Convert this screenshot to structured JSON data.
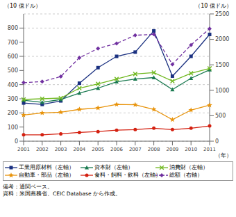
{
  "chart_data": {
    "type": "line",
    "categories": [
      "2001",
      "2002",
      "2003",
      "2004",
      "2005",
      "2006",
      "2007",
      "2008",
      "2009",
      "2010",
      "2011"
    ],
    "series": [
      {
        "name": "工業用原材料（左軸）",
        "color": "#1a3080",
        "marker": "square",
        "line_style": "solid",
        "axis": "y",
        "values": [
          270,
          260,
          285,
          410,
          520,
          600,
          630,
          780,
          460,
          600,
          755
        ]
      },
      {
        "name": "資本財（左軸）",
        "color": "#1a7a50",
        "marker": "triangle",
        "line_style": "solid",
        "axis": "y",
        "values": [
          290,
          275,
          295,
          340,
          375,
          420,
          440,
          450,
          365,
          445,
          505
        ]
      },
      {
        "name": "消費財（左軸）",
        "color": "#70b820",
        "marker": "x",
        "line_style": "solid",
        "axis": "y",
        "values": [
          295,
          300,
          305,
          375,
          405,
          440,
          475,
          485,
          425,
          480,
          515
        ]
      },
      {
        "name": "自動車・部品（左軸）",
        "color": "#e8930a",
        "marker": "star",
        "line_style": "solid",
        "axis": "y",
        "values": [
          185,
          200,
          205,
          225,
          235,
          260,
          258,
          225,
          152,
          220,
          255
        ]
      },
      {
        "name": "食料・飼料・飲料（左軸）",
        "color": "#d42010",
        "marker": "circle",
        "line_style": "solid",
        "axis": "y",
        "values": [
          45,
          45,
          52,
          62,
          68,
          78,
          82,
          92,
          82,
          92,
          108
        ]
      },
      {
        "name": "総額（右軸）",
        "color": "#7030a0",
        "marker": "diamond",
        "line_style": "dashed",
        "axis": "y2",
        "values": [
          1150,
          1170,
          1270,
          1640,
          1820,
          1920,
          2080,
          2100,
          1510,
          1890,
          2210
        ]
      }
    ],
    "ylim": [
      0,
      900
    ],
    "yticks": [
      0,
      100,
      200,
      300,
      400,
      500,
      600,
      700,
      800
    ],
    "y2lim": [
      0,
      2500
    ],
    "y2ticks": [
      0,
      500,
      1000,
      1500,
      2000,
      2500
    ],
    "y_label": "（10 億ドル）",
    "y2_label": "（10 億ドル）",
    "x_label": "（年）",
    "grid": true,
    "legend": "bottom",
    "annotations": [
      "備考：通関ベース。",
      "資料：米国商務省、CEIC Database から作成。"
    ]
  }
}
